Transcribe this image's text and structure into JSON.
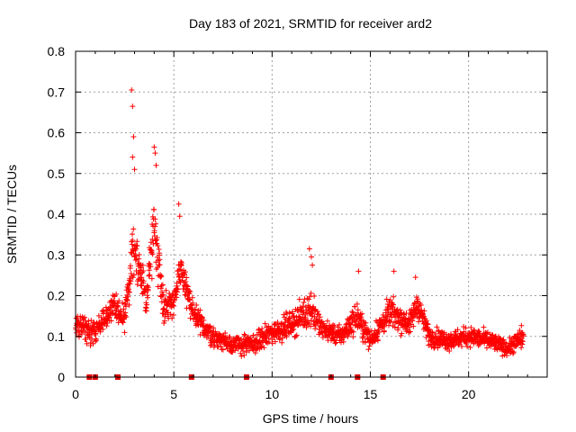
{
  "chart_data": {
    "type": "scatter",
    "title": "Day 183 of 2021, SRMTID for receiver ard2",
    "xlabel": "GPS time / hours",
    "ylabel": "SRMTID / TECUs",
    "xlim": [
      0,
      24
    ],
    "ylim": [
      0,
      0.8
    ],
    "xticks": [
      0,
      5,
      10,
      15,
      20
    ],
    "xtick_labels": [
      "0",
      "5",
      "10",
      "15",
      "20"
    ],
    "yticks": [
      0,
      0.1,
      0.2,
      0.3,
      0.4,
      0.5,
      0.6,
      0.7,
      0.8
    ],
    "ytick_labels": [
      "0",
      "0.1",
      "0.2",
      "0.3",
      "0.4",
      "0.5",
      "0.6",
      "0.7",
      "0.8"
    ],
    "grid": true,
    "marker": "plus",
    "color": "#ff0000",
    "x_end": 22.8,
    "envelope": [
      {
        "x": 0.0,
        "base": 0.13,
        "spread": 0.05
      },
      {
        "x": 0.5,
        "base": 0.12,
        "spread": 0.05
      },
      {
        "x": 1.0,
        "base": 0.11,
        "spread": 0.05
      },
      {
        "x": 1.5,
        "base": 0.15,
        "spread": 0.05
      },
      {
        "x": 2.0,
        "base": 0.17,
        "spread": 0.06
      },
      {
        "x": 2.5,
        "base": 0.14,
        "spread": 0.06
      },
      {
        "x": 2.9,
        "base": 0.33,
        "spread": 0.16
      },
      {
        "x": 3.3,
        "base": 0.25,
        "spread": 0.08
      },
      {
        "x": 3.6,
        "base": 0.19,
        "spread": 0.06
      },
      {
        "x": 4.0,
        "base": 0.38,
        "spread": 0.14
      },
      {
        "x": 4.5,
        "base": 0.17,
        "spread": 0.06
      },
      {
        "x": 5.0,
        "base": 0.19,
        "spread": 0.06
      },
      {
        "x": 5.4,
        "base": 0.26,
        "spread": 0.08
      },
      {
        "x": 6.0,
        "base": 0.15,
        "spread": 0.06
      },
      {
        "x": 7.0,
        "base": 0.1,
        "spread": 0.04
      },
      {
        "x": 8.0,
        "base": 0.08,
        "spread": 0.04
      },
      {
        "x": 9.0,
        "base": 0.08,
        "spread": 0.04
      },
      {
        "x": 10.0,
        "base": 0.11,
        "spread": 0.05
      },
      {
        "x": 11.0,
        "base": 0.13,
        "spread": 0.05
      },
      {
        "x": 12.0,
        "base": 0.17,
        "spread": 0.08
      },
      {
        "x": 12.5,
        "base": 0.12,
        "spread": 0.04
      },
      {
        "x": 13.5,
        "base": 0.1,
        "spread": 0.04
      },
      {
        "x": 14.3,
        "base": 0.15,
        "spread": 0.06
      },
      {
        "x": 15.0,
        "base": 0.09,
        "spread": 0.04
      },
      {
        "x": 16.0,
        "base": 0.16,
        "spread": 0.06
      },
      {
        "x": 17.0,
        "base": 0.13,
        "spread": 0.05
      },
      {
        "x": 17.4,
        "base": 0.18,
        "spread": 0.06
      },
      {
        "x": 18.0,
        "base": 0.1,
        "spread": 0.04
      },
      {
        "x": 19.0,
        "base": 0.09,
        "spread": 0.04
      },
      {
        "x": 20.0,
        "base": 0.1,
        "spread": 0.04
      },
      {
        "x": 21.0,
        "base": 0.09,
        "spread": 0.04
      },
      {
        "x": 22.0,
        "base": 0.07,
        "spread": 0.03
      },
      {
        "x": 22.8,
        "base": 0.1,
        "spread": 0.05
      }
    ],
    "outliers": [
      {
        "x": 2.85,
        "y": 0.705
      },
      {
        "x": 2.9,
        "y": 0.665
      },
      {
        "x": 2.95,
        "y": 0.59
      },
      {
        "x": 2.9,
        "y": 0.54
      },
      {
        "x": 3.0,
        "y": 0.51
      },
      {
        "x": 4.0,
        "y": 0.565
      },
      {
        "x": 4.05,
        "y": 0.55
      },
      {
        "x": 4.1,
        "y": 0.52
      },
      {
        "x": 5.25,
        "y": 0.425
      },
      {
        "x": 5.3,
        "y": 0.395
      },
      {
        "x": 11.9,
        "y": 0.315
      },
      {
        "x": 12.0,
        "y": 0.295
      },
      {
        "x": 12.05,
        "y": 0.275
      },
      {
        "x": 14.4,
        "y": 0.26
      },
      {
        "x": 16.2,
        "y": 0.26
      },
      {
        "x": 17.3,
        "y": 0.245
      }
    ],
    "gap_markers_x": [
      0.7,
      1.0,
      2.15,
      5.9,
      8.7,
      13.0,
      14.35,
      15.65
    ]
  }
}
